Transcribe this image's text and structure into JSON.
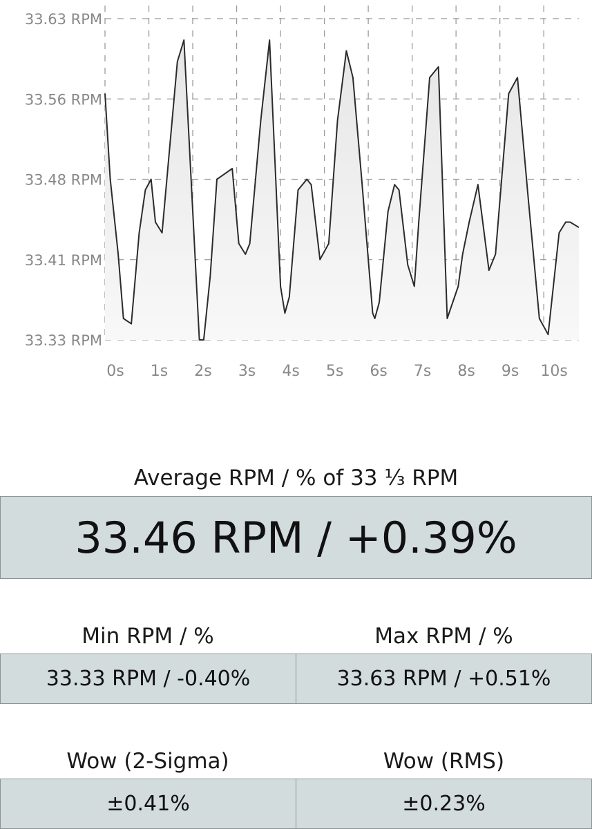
{
  "chart_data": {
    "type": "area",
    "title": "",
    "xlabel": "",
    "ylabel": "",
    "y_ticks": [
      "33.63 RPM",
      "33.56 RPM",
      "33.48 RPM",
      "33.41 RPM",
      "33.33 RPM"
    ],
    "x_ticks": [
      "0s",
      "1s",
      "2s",
      "3s",
      "4s",
      "5s",
      "6s",
      "7s",
      "8s",
      "9s",
      "10s"
    ],
    "xlim": [
      0,
      10.8
    ],
    "ylim": [
      33.33,
      33.63
    ],
    "grid": true,
    "grid_style": "dashed",
    "line_color": "#2b2b2b",
    "fill_color": "#f0f0f0",
    "series": [
      {
        "x": [
          0.0,
          0.12,
          0.3,
          0.42,
          0.6,
          0.78,
          0.92,
          1.05,
          1.15,
          1.3,
          1.65,
          1.8,
          2.15,
          2.25,
          2.4,
          2.55,
          2.9,
          3.05,
          3.2,
          3.3,
          3.55,
          3.75,
          4.0,
          4.1,
          4.2,
          4.4,
          4.6,
          4.7,
          4.9,
          5.1,
          5.3,
          5.5,
          5.65,
          5.85,
          6.1,
          6.15,
          6.25,
          6.45,
          6.6,
          6.7,
          6.9,
          7.05,
          7.15,
          7.4,
          7.6,
          7.8,
          8.05,
          8.15,
          8.3,
          8.5,
          8.75,
          8.9,
          9.1,
          9.2,
          9.4,
          9.65,
          9.9,
          10.1,
          10.35,
          10.5,
          10.6,
          10.8
        ],
        "y": [
          33.56,
          33.48,
          33.41,
          33.35,
          33.345,
          33.43,
          33.47,
          33.48,
          33.44,
          33.43,
          33.59,
          33.61,
          33.33,
          33.33,
          33.39,
          33.48,
          33.49,
          33.42,
          33.41,
          33.42,
          33.535,
          33.61,
          33.38,
          33.355,
          33.37,
          33.47,
          33.48,
          33.475,
          33.405,
          33.42,
          33.535,
          33.6,
          33.575,
          33.48,
          33.355,
          33.35,
          33.365,
          33.45,
          33.475,
          33.47,
          33.4,
          33.38,
          33.44,
          33.575,
          33.585,
          33.35,
          33.38,
          33.41,
          33.44,
          33.475,
          33.395,
          33.41,
          33.51,
          33.56,
          33.575,
          33.46,
          33.35,
          33.335,
          33.43,
          33.44,
          33.44,
          33.435
        ]
      }
    ]
  },
  "avg": {
    "caption": "Average RPM / % of 33 ⅓ RPM",
    "value": "33.46 RPM / +0.39%"
  },
  "min": {
    "caption": "Min RPM / %",
    "value": "33.33 RPM / -0.40%"
  },
  "max": {
    "caption": "Max RPM / %",
    "value": "33.63 RPM / +0.51%"
  },
  "wow2": {
    "caption": "Wow (2-Sigma)",
    "value": "±0.41%"
  },
  "wowrms": {
    "caption": "Wow (RMS)",
    "value": "±0.23%"
  }
}
